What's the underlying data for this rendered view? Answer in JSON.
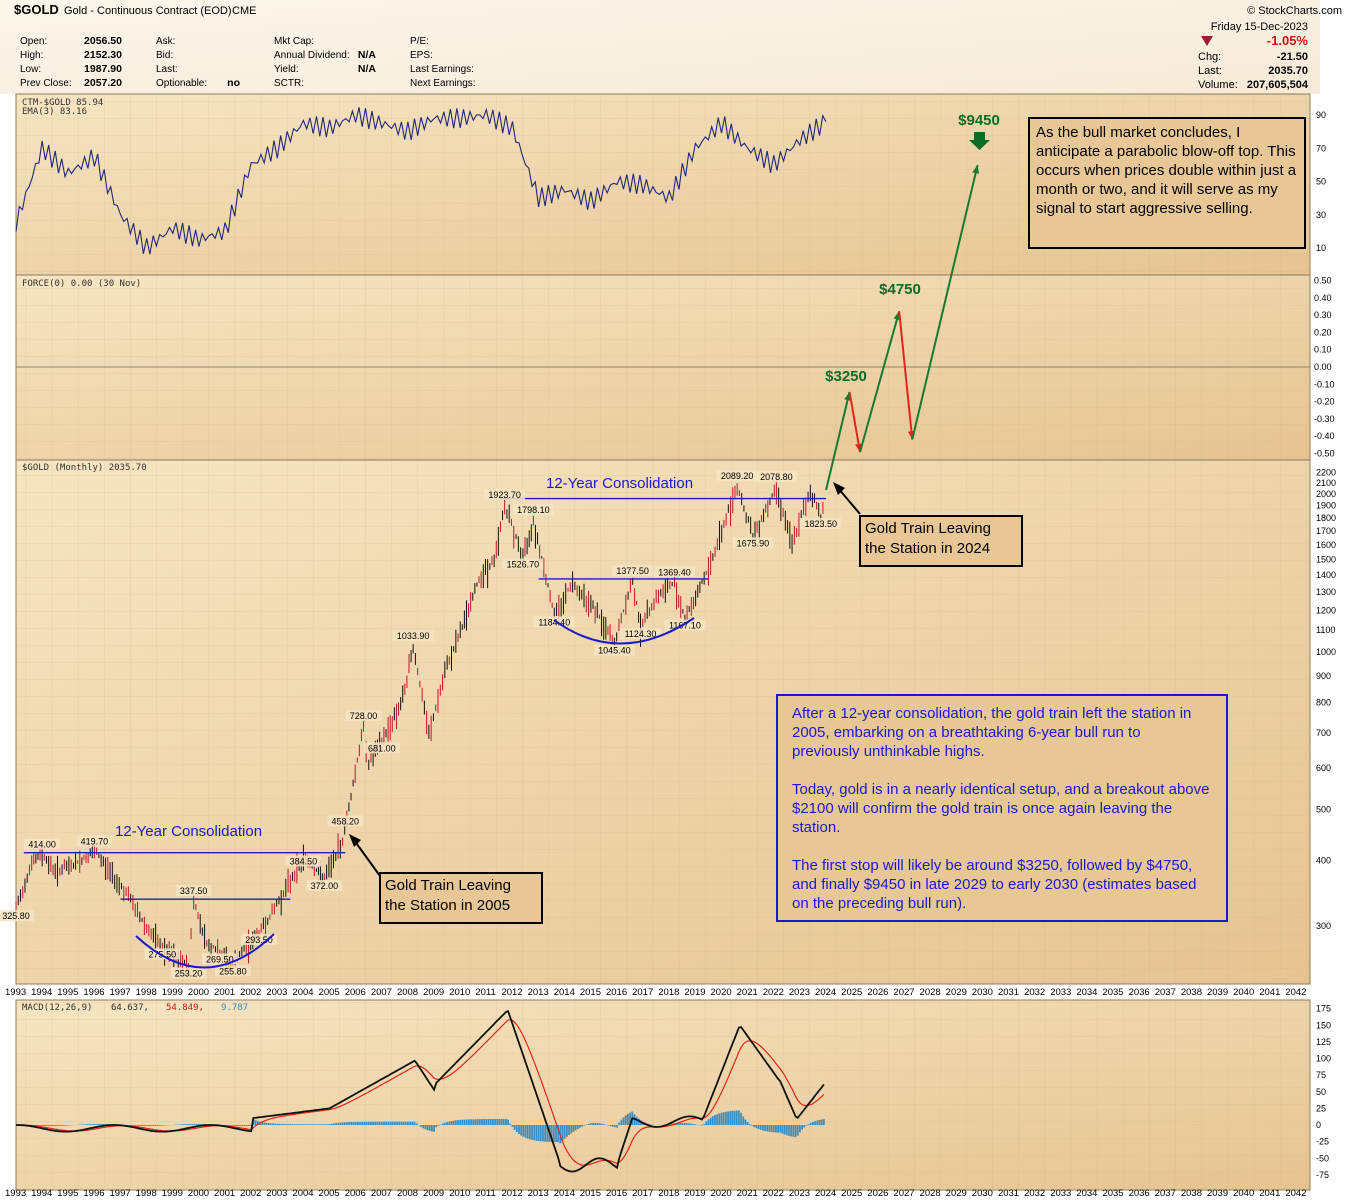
{
  "header": {
    "symbol": "$GOLD",
    "name": "Gold - Continuous Contract (EOD)",
    "exchange": "CME",
    "date": "Friday  15-Dec-2023",
    "watermark": "© StockCharts.com",
    "col1": [
      [
        "Open:",
        "2056.50"
      ],
      [
        "High:",
        "2152.30"
      ],
      [
        "Low:",
        "1987.90"
      ],
      [
        "Prev Close:",
        "2057.20"
      ]
    ],
    "col2": [
      [
        "Ask:",
        ""
      ],
      [
        "Bid:",
        ""
      ],
      [
        "Last:",
        ""
      ],
      [
        "Optionable:",
        "no"
      ]
    ],
    "col3": [
      [
        "Mkt Cap:",
        ""
      ],
      [
        "Annual Dividend:",
        "N/A"
      ],
      [
        "Yield:",
        "N/A"
      ],
      [
        "SCTR:",
        ""
      ]
    ],
    "col4": [
      [
        "P/E:",
        ""
      ],
      [
        "EPS:",
        ""
      ],
      [
        "Last Earnings:",
        ""
      ],
      [
        "Next Earnings:",
        ""
      ]
    ],
    "right": {
      "pct": "-1.05%",
      "chg_label": "Chg:",
      "chg": "-21.50",
      "last_label": "Last:",
      "last": "2035.70",
      "vol_label": "Volume:",
      "vol": "207,605,504"
    }
  },
  "panels": {
    "ctm_label": "CTM-$GOLD 85.94",
    "ema_label": "EMA(3) 83.16",
    "force_label": "FORCE(0) 0.00 (30 Nov)",
    "price_label": "$GOLD (Monthly) 2035.70",
    "macd_label": "MACD(12,26,9)",
    "macd_v1": "64.637,",
    "macd_v2": "54.849,",
    "macd_v3": "9.787"
  },
  "annotations": {
    "consolidation1": "12-Year Consolidation",
    "consolidation2": "12-Year Consolidation",
    "target1": "$3250",
    "target2": "$4750",
    "target3": "$9450",
    "train2005": [
      "Gold Train Leaving",
      "the Station in 2005"
    ],
    "train2024": [
      "Gold Train Leaving",
      "the Station in 2024"
    ],
    "blowoff": "As the bull market concludes, I anticipate a parabolic blow-off top. This occurs when prices double within just a month or two, and it will serve as my signal to start aggressive selling.",
    "story_p1": "After a 12-year consolidation, the gold train left the station in 2005, embarking on a breathtaking 6-year bull run to previously unthinkable highs.",
    "story_p2": "Today, gold is in a nearly identical setup, and a breakout above $2100 will confirm the gold train is once again leaving the station.",
    "story_p3": "The first stop will likely be around $3250, followed by $4750, and finally $9450 in late 2029 to early 2030 (estimates based on the preceding bull run)."
  },
  "chart_data": [
    {
      "type": "line",
      "title": "CTM-$GOLD",
      "series": [
        {
          "name": "CTM-$GOLD",
          "values_by_year": [
            [
              1993,
              25
            ],
            [
              1994,
              70
            ],
            [
              1995,
              55
            ],
            [
              1996,
              65
            ],
            [
              1997,
              30
            ],
            [
              1998,
              10
            ],
            [
              1999,
              22
            ],
            [
              2000,
              15
            ],
            [
              2001,
              20
            ],
            [
              2002,
              60
            ],
            [
              2003,
              70
            ],
            [
              2004,
              85
            ],
            [
              2005,
              82
            ],
            [
              2006,
              90
            ],
            [
              2007,
              85
            ],
            [
              2008,
              80
            ],
            [
              2009,
              88
            ],
            [
              2010,
              88
            ],
            [
              2011,
              90
            ],
            [
              2012,
              82
            ],
            [
              2013,
              40
            ],
            [
              2014,
              45
            ],
            [
              2015,
              38
            ],
            [
              2016,
              50
            ],
            [
              2017,
              48
            ],
            [
              2018,
              40
            ],
            [
              2019,
              70
            ],
            [
              2020,
              85
            ],
            [
              2021,
              70
            ],
            [
              2022,
              60
            ],
            [
              2023,
              75
            ],
            [
              2024,
              85.94
            ]
          ]
        },
        {
          "name": "EMA(3)",
          "last": 83.16
        }
      ],
      "y_ticks": [
        10,
        30,
        50,
        70,
        90
      ]
    },
    {
      "type": "line",
      "title": "FORCE(0)",
      "y_ticks": [
        0.5,
        0.4,
        0.3,
        0.2,
        0.1,
        0.0,
        -0.1,
        -0.2,
        -0.3,
        -0.4,
        -0.5
      ],
      "values": [
        0.0
      ]
    },
    {
      "type": "line",
      "title": "$GOLD (Monthly)",
      "scale": "log",
      "x_ticks": [
        "1993",
        "1994",
        "1995",
        "1996",
        "1997",
        "1998",
        "1999",
        "2000",
        "2001",
        "2002",
        "2003",
        "2004",
        "2005",
        "2006",
        "2007",
        "2008",
        "2009",
        "2010",
        "2011",
        "2012",
        "2013",
        "2014",
        "2015",
        "2016",
        "2017",
        "2018",
        "2019",
        "2020",
        "2021",
        "2022",
        "2023",
        "2024",
        "2025",
        "2026",
        "2027",
        "2028",
        "2029",
        "2030",
        "2031",
        "2032",
        "2033",
        "2034",
        "2035",
        "2036",
        "2037",
        "2038",
        "2039",
        "2040",
        "2041",
        "2042"
      ],
      "y_ticks": [
        2200,
        2100,
        2000,
        1900,
        1800,
        1700,
        1600,
        1500,
        1400,
        1300,
        1200,
        1100,
        1000,
        900,
        800,
        700,
        600,
        500,
        400,
        300
      ],
      "price_points": [
        [
          1993.0,
          325.8
        ],
        [
          1993.6,
          400
        ],
        [
          1994.0,
          414.0
        ],
        [
          1994.5,
          385
        ],
        [
          1995.2,
          395
        ],
        [
          1996.0,
          419.7
        ],
        [
          1996.6,
          385
        ],
        [
          1997.3,
          345
        ],
        [
          1998.0,
          300
        ],
        [
          1998.6,
          275.5
        ],
        [
          1999.3,
          260
        ],
        [
          1999.6,
          253.2
        ],
        [
          1999.8,
          337.5
        ],
        [
          2000.3,
          280
        ],
        [
          2000.8,
          269.5
        ],
        [
          2001.3,
          255.8
        ],
        [
          2001.9,
          280
        ],
        [
          2002.3,
          293.5
        ],
        [
          2002.8,
          320
        ],
        [
          2003.5,
          370
        ],
        [
          2004.0,
          410
        ],
        [
          2004.5,
          385
        ],
        [
          2004.8,
          372.0
        ],
        [
          2005.5,
          440
        ],
        [
          2006.3,
          728.0
        ],
        [
          2006.5,
          620
        ],
        [
          2007.0,
          681.0
        ],
        [
          2007.8,
          820
        ],
        [
          2008.2,
          1033.9
        ],
        [
          2008.8,
          700
        ],
        [
          2009.5,
          950
        ],
        [
          2010.0,
          1100
        ],
        [
          2010.8,
          1420
        ],
        [
          2011.3,
          1500
        ],
        [
          2011.7,
          1923.7
        ],
        [
          2012.4,
          1526.7
        ],
        [
          2012.8,
          1798.1
        ],
        [
          2013.6,
          1184.4
        ],
        [
          2014.3,
          1370
        ],
        [
          2015.0,
          1250
        ],
        [
          2015.9,
          1045.4
        ],
        [
          2016.6,
          1377.5
        ],
        [
          2016.9,
          1124.3
        ],
        [
          2017.5,
          1280
        ],
        [
          2018.2,
          1369.4
        ],
        [
          2018.6,
          1167.1
        ],
        [
          2019.5,
          1450
        ],
        [
          2020.6,
          2089.2
        ],
        [
          2021.2,
          1675.9
        ],
        [
          2022.1,
          2078.8
        ],
        [
          2022.7,
          1618
        ],
        [
          2023.4,
          2050
        ],
        [
          2023.8,
          1823.5
        ],
        [
          2023.96,
          2035.7
        ]
      ],
      "labels": [
        {
          "x": 1993.0,
          "y": 325.8,
          "text": "325.80"
        },
        {
          "x": 1994.0,
          "y": 414.0,
          "text": "414.00"
        },
        {
          "x": 1996.0,
          "y": 419.7,
          "text": "419.70"
        },
        {
          "x": 1998.6,
          "y": 275.5,
          "text": "275.50"
        },
        {
          "x": 1999.6,
          "y": 253.2,
          "text": "253.20"
        },
        {
          "x": 1999.8,
          "y": 337.5,
          "text": "337.50"
        },
        {
          "x": 2000.8,
          "y": 269.5,
          "text": "269.50"
        },
        {
          "x": 2001.3,
          "y": 255.8,
          "text": "255.80"
        },
        {
          "x": 2002.3,
          "y": 293.5,
          "text": "293.50"
        },
        {
          "x": 2004.0,
          "y": 384.5,
          "text": "384.50"
        },
        {
          "x": 2004.8,
          "y": 372.0,
          "text": "372.00"
        },
        {
          "x": 2005.6,
          "y": 458.2,
          "text": "458.20"
        },
        {
          "x": 2006.3,
          "y": 728.0,
          "text": "728.00"
        },
        {
          "x": 2007.0,
          "y": 681.0,
          "text": "681.00"
        },
        {
          "x": 2008.2,
          "y": 1033.9,
          "text": "1033.90"
        },
        {
          "x": 2011.7,
          "y": 1923.7,
          "text": "1923.70"
        },
        {
          "x": 2012.8,
          "y": 1798.1,
          "text": "1798.10"
        },
        {
          "x": 2012.4,
          "y": 1526.7,
          "text": "1526.70"
        },
        {
          "x": 2013.6,
          "y": 1184.4,
          "text": "1184.40"
        },
        {
          "x": 2015.9,
          "y": 1045.4,
          "text": "1045.40"
        },
        {
          "x": 2016.6,
          "y": 1377.5,
          "text": "1377.50"
        },
        {
          "x": 2016.9,
          "y": 1124.3,
          "text": "1124.30"
        },
        {
          "x": 2018.2,
          "y": 1369.4,
          "text": "1369.40"
        },
        {
          "x": 2018.6,
          "y": 1167.1,
          "text": "1167.10"
        },
        {
          "x": 2020.6,
          "y": 2089.2,
          "text": "2089.20"
        },
        {
          "x": 2021.2,
          "y": 1675.9,
          "text": "1675.90"
        },
        {
          "x": 2022.1,
          "y": 2078.8,
          "text": "2078.80"
        },
        {
          "x": 2023.8,
          "y": 1823.5,
          "text": "1823.50"
        }
      ],
      "resistance_lines": [
        {
          "from": 1993.3,
          "to": 2005.6,
          "value": 414
        },
        {
          "from": 1997.0,
          "to": 2003.5,
          "value": 337.5
        },
        {
          "from": 2011.5,
          "to": 2024.0,
          "value": 1960
        },
        {
          "from": 2013.0,
          "to": 2019.5,
          "value": 1377.5
        }
      ],
      "projection": [
        [
          2024.0,
          2035.7
        ],
        [
          2024.9,
          3250
        ],
        [
          2025.3,
          2450
        ],
        [
          2026.8,
          4750
        ],
        [
          2027.3,
          2600
        ],
        [
          2029.8,
          9450
        ]
      ]
    },
    {
      "type": "line",
      "title": "MACD(12,26,9)",
      "y_ticks": [
        175,
        150,
        125,
        100,
        75,
        50,
        25,
        0,
        -25,
        -50,
        -75
      ],
      "series": [
        {
          "name": "MACD",
          "last": 64.637
        },
        {
          "name": "Signal",
          "last": 54.849
        },
        {
          "name": "Histogram",
          "last": 9.787
        }
      ]
    }
  ]
}
